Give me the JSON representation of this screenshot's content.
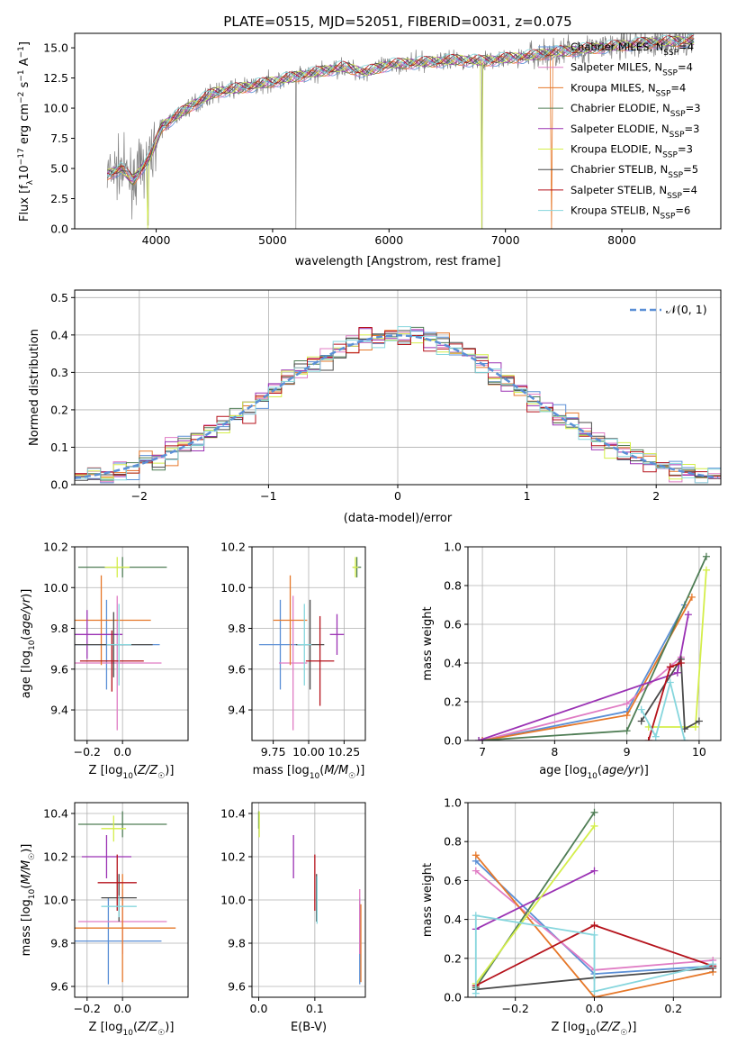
{
  "colors": {
    "Chabrier MILES": "#5b8fd6",
    "Salpeter MILES": "#e07cc4",
    "Kroupa MILES": "#e6782a",
    "Chabrier ELODIE": "#4f7d55",
    "Salpeter ELODIE": "#9b32b4",
    "Kroupa ELODIE": "#d4ee4a",
    "Chabrier STELIB": "#4a4a4a",
    "Salpeter STELIB": "#b5121b",
    "Kroupa STELIB": "#86d6dd",
    "observed": "#808080",
    "normal": "#5b8fd6",
    "grid": "#b0b0b0"
  },
  "chart_data": [
    {
      "id": "spectrum",
      "type": "line",
      "title": "PLATE=0515, MJD=52051, FIBERID=0031, z=0.075",
      "xlabel": "wavelength [Angstrom, rest frame]",
      "ylabel": "Flux [f_λ10^-17 erg cm^-2 s^-1 A^-1]",
      "xlim": [
        3300,
        8850
      ],
      "ylim": [
        0,
        16.2
      ],
      "xticks": [
        4000,
        5000,
        6000,
        7000,
        8000
      ],
      "yticks": [
        0.0,
        2.5,
        5.0,
        7.5,
        10.0,
        12.5,
        15.0
      ],
      "grid": false,
      "legend": "right",
      "legend_entries": [
        {
          "model": "Chabrier MILES",
          "n": "4"
        },
        {
          "model": "Salpeter MILES",
          "n": "4"
        },
        {
          "model": "Kroupa MILES",
          "n": "4"
        },
        {
          "model": "Chabrier ELODIE",
          "n": "3"
        },
        {
          "model": "Salpeter ELODIE",
          "n": "3"
        },
        {
          "model": "Kroupa ELODIE",
          "n": "3"
        },
        {
          "model": "Chabrier STELIB",
          "n": "5"
        },
        {
          "model": "Salpeter STELIB",
          "n": "4"
        },
        {
          "model": "Kroupa STELIB",
          "n": "6"
        }
      ],
      "observed_anchor_x": [
        3580,
        3700,
        3800,
        3950,
        4050,
        4300,
        4500,
        4800,
        5000,
        5200,
        5400,
        5600,
        5800,
        6000,
        6300,
        6600,
        6800,
        7000,
        7200,
        7400,
        7600,
        7800,
        8000,
        8200,
        8400,
        8600
      ],
      "observed_anchor_y": [
        4.5,
        5.0,
        4.0,
        6.0,
        8.5,
        10.2,
        11.3,
        11.8,
        12.2,
        12.6,
        13.0,
        13.4,
        13.0,
        13.6,
        13.8,
        14.0,
        13.9,
        14.1,
        14.3,
        14.6,
        14.8,
        15.0,
        15.2,
        15.4,
        15.5,
        15.6
      ]
    },
    {
      "id": "residuals",
      "type": "line",
      "xlabel": "(data-model)/error",
      "ylabel": "Normed distribution",
      "xlim": [
        -2.5,
        2.5
      ],
      "ylim": [
        0,
        0.52
      ],
      "xticks": [
        -2,
        -1,
        0,
        1,
        2
      ],
      "yticks": [
        0.0,
        0.1,
        0.2,
        0.3,
        0.4,
        0.5
      ],
      "grid": true,
      "legend": "top-right",
      "normal_label": "𝒩(0, 1)",
      "bin_width": 0.1
    },
    {
      "id": "age_vs_Z",
      "type": "scatter",
      "xlabel": "Z [log10(Z/Z☉)]",
      "ylabel": "age [log10(age/yr)]",
      "xlim": [
        -0.27,
        0.37
      ],
      "ylim": [
        9.25,
        10.2
      ],
      "xticks": [
        -0.2,
        0.0
      ],
      "yticks": [
        9.4,
        9.6,
        9.8,
        10.0,
        10.2
      ],
      "grid": true,
      "points": [
        {
          "model": "Chabrier MILES",
          "x": -0.09,
          "xerr": 0.3,
          "y": 9.72,
          "yerr": 0.22
        },
        {
          "model": "Salpeter MILES",
          "x": -0.03,
          "xerr": 0.25,
          "y": 9.63,
          "yerr": 0.33
        },
        {
          "model": "Kroupa MILES",
          "x": -0.12,
          "xerr": 0.28,
          "y": 9.84,
          "yerr": 0.22
        },
        {
          "model": "Chabrier ELODIE",
          "x": 0.0,
          "xerr": 0.25,
          "y": 10.1,
          "yerr": 0.05
        },
        {
          "model": "Salpeter ELODIE",
          "x": -0.2,
          "xerr": 0.2,
          "y": 9.77,
          "yerr": 0.12
        },
        {
          "model": "Kroupa ELODIE",
          "x": -0.03,
          "xerr": 0.07,
          "y": 10.1,
          "yerr": 0.05
        },
        {
          "model": "Chabrier STELIB",
          "x": -0.05,
          "xerr": 0.22,
          "y": 9.72,
          "yerr": 0.16
        },
        {
          "model": "Salpeter STELIB",
          "x": -0.06,
          "xerr": 0.18,
          "y": 9.64,
          "yerr": 0.15
        },
        {
          "model": "Kroupa STELIB",
          "x": -0.02,
          "xerr": 0.07,
          "y": 9.72,
          "yerr": 0.2
        }
      ]
    },
    {
      "id": "age_vs_mass",
      "type": "scatter",
      "xlabel": "mass [log10(M/M☉)]",
      "ylabel": "",
      "xlim": [
        9.6,
        10.4
      ],
      "ylim": [
        9.25,
        10.2
      ],
      "xticks": [
        9.75,
        10.0,
        10.25
      ],
      "yticks": [
        9.4,
        9.6,
        9.8,
        10.0,
        10.2
      ],
      "grid": true,
      "points": [
        {
          "model": "Chabrier MILES",
          "x": 9.8,
          "xerr": 0.15,
          "y": 9.72,
          "yerr": 0.22
        },
        {
          "model": "Salpeter MILES",
          "x": 9.89,
          "xerr": 0.1,
          "y": 9.63,
          "yerr": 0.33
        },
        {
          "model": "Kroupa MILES",
          "x": 9.87,
          "xerr": 0.12,
          "y": 9.84,
          "yerr": 0.22
        },
        {
          "model": "Chabrier ELODIE",
          "x": 10.34,
          "xerr": 0.03,
          "y": 10.1,
          "yerr": 0.05
        },
        {
          "model": "Salpeter ELODIE",
          "x": 10.2,
          "xerr": 0.05,
          "y": 9.77,
          "yerr": 0.1
        },
        {
          "model": "Kroupa ELODIE",
          "x": 10.33,
          "xerr": 0.02,
          "y": 10.1,
          "yerr": 0.05
        },
        {
          "model": "Chabrier STELIB",
          "x": 10.01,
          "xerr": 0.1,
          "y": 9.72,
          "yerr": 0.22
        },
        {
          "model": "Salpeter STELIB",
          "x": 10.08,
          "xerr": 0.1,
          "y": 9.64,
          "yerr": 0.22
        },
        {
          "model": "Kroupa STELIB",
          "x": 9.97,
          "xerr": 0.05,
          "y": 9.72,
          "yerr": 0.2
        }
      ]
    },
    {
      "id": "mass_weight_vs_age",
      "type": "line",
      "xlabel": "age [log10(age/yr)]",
      "ylabel": "mass weight",
      "xlim": [
        6.8,
        10.3
      ],
      "ylim": [
        0,
        1.0
      ],
      "xticks": [
        7,
        8,
        9,
        10
      ],
      "yticks": [
        0.0,
        0.2,
        0.4,
        0.6,
        0.8,
        1.0
      ],
      "grid": true,
      "series": [
        {
          "model": "Chabrier MILES",
          "x": [
            7.0,
            9.0,
            9.8
          ],
          "y": [
            0.0,
            0.15,
            0.7
          ]
        },
        {
          "model": "Salpeter MILES",
          "x": [
            7.0,
            9.0,
            9.75
          ],
          "y": [
            0.0,
            0.19,
            0.43
          ]
        },
        {
          "model": "Kroupa MILES",
          "x": [
            7.0,
            9.0,
            9.9
          ],
          "y": [
            0.0,
            0.13,
            0.74
          ]
        },
        {
          "model": "Chabrier ELODIE",
          "x": [
            6.95,
            9.0,
            10.1
          ],
          "y": [
            0.0,
            0.05,
            0.95
          ]
        },
        {
          "model": "Salpeter ELODIE",
          "x": [
            6.95,
            9.7,
            9.85
          ],
          "y": [
            0.0,
            0.35,
            0.65
          ]
        },
        {
          "model": "Kroupa ELODIE",
          "x": [
            9.3,
            9.95,
            10.1
          ],
          "y": [
            0.07,
            0.07,
            0.88
          ]
        },
        {
          "model": "Chabrier STELIB",
          "x": [
            9.2,
            9.75,
            9.8,
            10.0
          ],
          "y": [
            0.1,
            0.42,
            0.06,
            0.1
          ]
        },
        {
          "model": "Salpeter STELIB",
          "x": [
            9.3,
            9.6,
            9.75
          ],
          "y": [
            0.0,
            0.38,
            0.4
          ]
        },
        {
          "model": "Kroupa STELIB",
          "x": [
            9.2,
            9.4,
            9.6,
            9.8
          ],
          "y": [
            0.16,
            0.02,
            0.3,
            0.0
          ]
        }
      ]
    },
    {
      "id": "mass_vs_Z",
      "type": "scatter",
      "xlabel": "Z [log10(Z/Z☉)]",
      "ylabel": "mass [log10(M/M☉)]",
      "xlim": [
        -0.27,
        0.37
      ],
      "ylim": [
        9.55,
        10.45
      ],
      "xticks": [
        -0.2,
        0.0
      ],
      "yticks": [
        9.6,
        9.8,
        10.0,
        10.2,
        10.4
      ],
      "grid": true,
      "points": [
        {
          "model": "Chabrier MILES",
          "x": -0.08,
          "xerr": 0.3,
          "y": 9.81,
          "yerr": 0.2
        },
        {
          "model": "Salpeter MILES",
          "x": 0.0,
          "xerr": 0.25,
          "y": 9.9,
          "yerr": 0.15
        },
        {
          "model": "Kroupa MILES",
          "x": 0.0,
          "xerr": 0.3,
          "y": 9.87,
          "yerr": 0.25
        },
        {
          "model": "Chabrier ELODIE",
          "x": 0.0,
          "xerr": 0.25,
          "y": 10.35,
          "yerr": 0.06
        },
        {
          "model": "Salpeter ELODIE",
          "x": -0.09,
          "xerr": 0.14,
          "y": 10.2,
          "yerr": 0.1
        },
        {
          "model": "Kroupa ELODIE",
          "x": -0.05,
          "xerr": 0.07,
          "y": 10.33,
          "yerr": 0.06
        },
        {
          "model": "Chabrier STELIB",
          "x": -0.02,
          "xerr": 0.1,
          "y": 10.01,
          "yerr": 0.11
        },
        {
          "model": "Salpeter STELIB",
          "x": -0.03,
          "xerr": 0.11,
          "y": 10.08,
          "yerr": 0.13
        },
        {
          "model": "Kroupa STELIB",
          "x": -0.02,
          "xerr": 0.1,
          "y": 9.97,
          "yerr": 0.05
        }
      ]
    },
    {
      "id": "mass_vs_EBV",
      "type": "scatter",
      "xlabel": "E(B-V)",
      "ylabel": "",
      "xlim": [
        -0.012,
        0.19
      ],
      "ylim": [
        9.55,
        10.45
      ],
      "xticks": [
        0.0,
        0.1
      ],
      "yticks": [
        9.6,
        9.8,
        10.0,
        10.2,
        10.4
      ],
      "grid": true,
      "points": [
        {
          "model": "Chabrier MILES",
          "x": 0.18,
          "xerr": 0.0,
          "y": 9.81,
          "yerr": 0.2
        },
        {
          "model": "Salpeter MILES",
          "x": 0.18,
          "xerr": 0.0,
          "y": 9.9,
          "yerr": 0.15
        },
        {
          "model": "Kroupa MILES",
          "x": 0.182,
          "xerr": 0.0,
          "y": 9.8,
          "yerr": 0.18
        },
        {
          "model": "Chabrier ELODIE",
          "x": 0.0,
          "xerr": 0.0,
          "y": 10.37,
          "yerr": 0.04
        },
        {
          "model": "Salpeter ELODIE",
          "x": 0.062,
          "xerr": 0.0,
          "y": 10.2,
          "yerr": 0.1
        },
        {
          "model": "Kroupa ELODIE",
          "x": 0.001,
          "xerr": 0.0,
          "y": 10.35,
          "yerr": 0.06
        },
        {
          "model": "Chabrier STELIB",
          "x": 0.103,
          "xerr": 0.0,
          "y": 10.01,
          "yerr": 0.11
        },
        {
          "model": "Salpeter STELIB",
          "x": 0.1,
          "xerr": 0.0,
          "y": 10.08,
          "yerr": 0.13
        },
        {
          "model": "Kroupa STELIB",
          "x": 0.104,
          "xerr": 0.0,
          "y": 10.0,
          "yerr": 0.11
        }
      ]
    },
    {
      "id": "mass_weight_vs_Z",
      "type": "line",
      "xlabel": "Z [log10(Z/Z☉)]",
      "ylabel": "mass weight",
      "xlim": [
        -0.32,
        0.32
      ],
      "ylim": [
        0,
        1.0
      ],
      "xticks": [
        -0.2,
        0.0,
        0.2
      ],
      "yticks": [
        0.0,
        0.2,
        0.4,
        0.6,
        0.8,
        1.0
      ],
      "grid": true,
      "series": [
        {
          "model": "Chabrier MILES",
          "x": [
            -0.3,
            0.0,
            0.3
          ],
          "y": [
            0.7,
            0.12,
            0.16
          ]
        },
        {
          "model": "Salpeter MILES",
          "x": [
            -0.3,
            0.0,
            0.3
          ],
          "y": [
            0.65,
            0.14,
            0.19
          ]
        },
        {
          "model": "Kroupa MILES",
          "x": [
            -0.3,
            0.0,
            0.3
          ],
          "y": [
            0.73,
            0.0,
            0.13
          ]
        },
        {
          "model": "Chabrier ELODIE",
          "x": [
            -0.3,
            0.0
          ],
          "y": [
            0.05,
            0.95
          ]
        },
        {
          "model": "Salpeter ELODIE",
          "x": [
            -0.3,
            0.0
          ],
          "y": [
            0.35,
            0.65
          ]
        },
        {
          "model": "Kroupa ELODIE",
          "x": [
            -0.3,
            0.0
          ],
          "y": [
            0.07,
            0.88
          ]
        },
        {
          "model": "Chabrier STELIB",
          "x": [
            -0.3,
            0.0,
            0.3
          ],
          "y": [
            0.04,
            0.1,
            0.15
          ]
        },
        {
          "model": "Salpeter STELIB",
          "x": [
            -0.3,
            0.0,
            0.3
          ],
          "y": [
            0.06,
            0.37,
            0.16
          ]
        },
        {
          "model": "Kroupa STELIB",
          "x": [
            -0.3,
            -0.3,
            0.0,
            0.0,
            0.3
          ],
          "y": [
            0.02,
            0.42,
            0.32,
            0.03,
            0.17
          ]
        }
      ]
    }
  ]
}
